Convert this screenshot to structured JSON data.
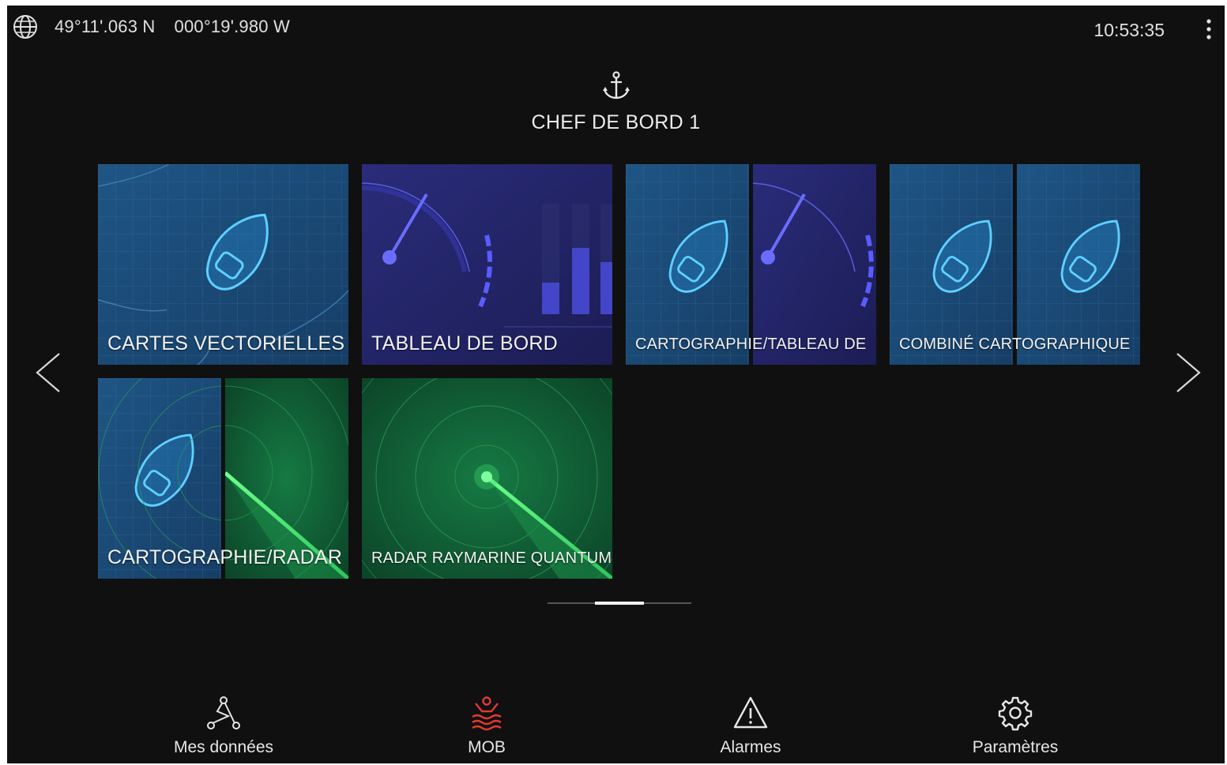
{
  "status_bar": {
    "latitude": "49°11'.063 N",
    "longitude": "000°19'.980 W",
    "time": "10:53:35"
  },
  "profile": {
    "name": "CHEF DE BORD 1"
  },
  "tiles": [
    {
      "label": "CARTES VECTORIELLES",
      "kind": "chart"
    },
    {
      "label": "TABLEAU DE BORD",
      "kind": "dashboard"
    },
    {
      "label": "CARTOGRAPHIE/TABLEAU DE",
      "kind": "chart-dashboard"
    },
    {
      "label": "COMBINÉ CARTOGRAPHIQUE",
      "kind": "chart-chart"
    },
    {
      "label": "CARTOGRAPHIE/RADAR",
      "kind": "chart-radar"
    },
    {
      "label": "RADAR RAYMARINE QUANTUM",
      "kind": "radar"
    }
  ],
  "pager": {
    "pages": 3,
    "current": 2
  },
  "bottom_nav": [
    {
      "label": "Mes données",
      "icon": "waypoints-icon"
    },
    {
      "label": "MOB",
      "icon": "man-overboard-icon",
      "color": "#e03a2e"
    },
    {
      "label": "Alarmes",
      "icon": "warning-icon"
    },
    {
      "label": "Paramètres",
      "icon": "gear-icon"
    }
  ],
  "colors": {
    "background": "#101010",
    "chart_tile": "#1d4d7a",
    "dashboard_tile": "#22246a",
    "radar_tile": "#0f5a35",
    "mob_red": "#e03a2e"
  }
}
